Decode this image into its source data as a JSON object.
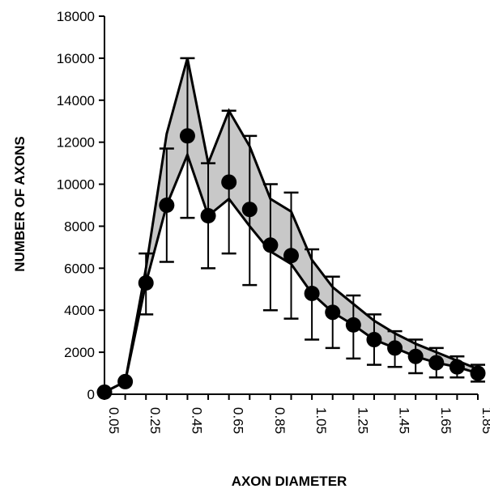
{
  "chart_data": {
    "type": "line",
    "title": "",
    "xlabel": "AXON DIAMETER",
    "ylabel": "NUMBER OF AXONS",
    "ylim": [
      0,
      18000
    ],
    "y_ticks": [
      0,
      2000,
      4000,
      6000,
      8000,
      10000,
      12000,
      14000,
      16000,
      18000
    ],
    "x_tick_labels": [
      "0.05",
      "0.25",
      "0.45",
      "0.65",
      "0.85",
      "1.05",
      "1.25",
      "1.45",
      "1.65",
      "1.85"
    ],
    "x": [
      0.05,
      0.15,
      0.25,
      0.35,
      0.45,
      0.55,
      0.65,
      0.75,
      0.85,
      0.95,
      1.05,
      1.15,
      1.25,
      1.35,
      1.45,
      1.55,
      1.65,
      1.75,
      1.85
    ],
    "xlim": [
      0.05,
      1.85
    ],
    "grid": false,
    "series": [
      {
        "role": "mean",
        "marker": "filled-circle",
        "values": [
          100,
          600,
          5300,
          9000,
          12300,
          8500,
          10100,
          8800,
          7100,
          6600,
          4800,
          3900,
          3300,
          2600,
          2200,
          1800,
          1500,
          1300,
          1000
        ],
        "error_upper": [
          100,
          600,
          6700,
          11700,
          16000,
          11000,
          13500,
          12300,
          10000,
          9600,
          6900,
          5600,
          4700,
          3800,
          3000,
          2600,
          2200,
          1800,
          1400
        ],
        "error_lower": [
          100,
          600,
          3800,
          6300,
          8400,
          6000,
          6700,
          5200,
          4000,
          3600,
          2600,
          2200,
          1700,
          1400,
          1300,
          1000,
          800,
          800,
          600
        ]
      },
      {
        "role": "upper-envelope",
        "values": [
          100,
          600,
          6000,
          12400,
          16000,
          11000,
          13500,
          11800,
          9300,
          8700,
          6400,
          5100,
          4300,
          3500,
          2900,
          2400,
          2000,
          1600,
          1200
        ]
      },
      {
        "role": "lower-envelope",
        "values": [
          100,
          600,
          5300,
          9000,
          11400,
          8500,
          9300,
          8000,
          6800,
          6200,
          4800,
          3900,
          3300,
          2600,
          2200,
          1800,
          1500,
          1300,
          1000
        ]
      }
    ],
    "colors": {
      "line": "#000000",
      "fill": "#c8c8c8",
      "marker": "#000000"
    }
  }
}
